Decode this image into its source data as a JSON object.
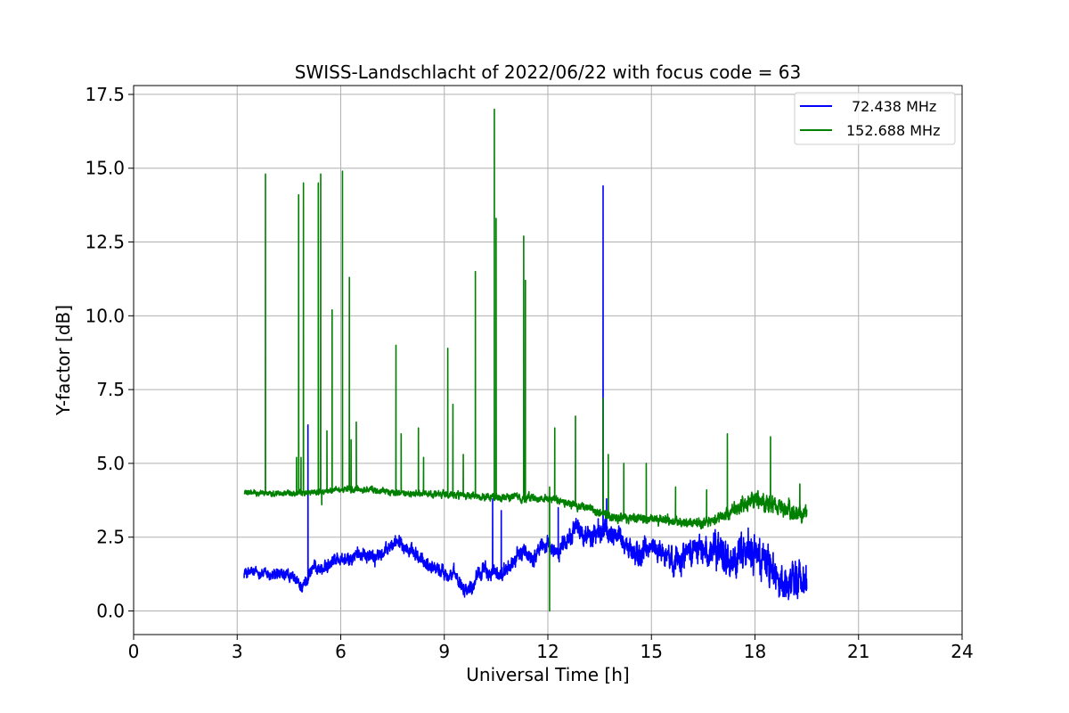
{
  "chart_data": {
    "type": "line",
    "title": "SWISS-Landschlacht of 2022/06/22 with focus code = 63",
    "xlabel": "Universal Time [h]",
    "ylabel": "Y-factor [dB]",
    "xlim": [
      0,
      24
    ],
    "ylim": [
      -0.8,
      17.8
    ],
    "xticks": [
      0,
      3,
      6,
      9,
      12,
      15,
      18,
      21,
      24
    ],
    "xtick_labels": [
      "0",
      "3",
      "6",
      "9",
      "12",
      "15",
      "18",
      "21",
      "24"
    ],
    "yticks": [
      0,
      2.5,
      5,
      7.5,
      10,
      12.5,
      15,
      17.5
    ],
    "ytick_labels": [
      "0.0",
      "2.5",
      "5.0",
      "7.5",
      "10.0",
      "12.5",
      "15.0",
      "17.5"
    ],
    "grid": true,
    "legend_position": "top-right",
    "series": [
      {
        "name": "72.438 MHz",
        "color": "#0000ff",
        "baseline": [
          [
            3.2,
            1.3
          ],
          [
            3.6,
            1.3
          ],
          [
            4.0,
            1.2
          ],
          [
            4.5,
            1.2
          ],
          [
            4.9,
            0.8
          ],
          [
            5.2,
            1.5
          ],
          [
            5.5,
            1.4
          ],
          [
            5.8,
            1.8
          ],
          [
            6.2,
            1.7
          ],
          [
            6.6,
            2.0
          ],
          [
            7.0,
            1.8
          ],
          [
            7.3,
            2.0
          ],
          [
            7.7,
            2.5
          ],
          [
            8.0,
            2.0
          ],
          [
            8.5,
            1.6
          ],
          [
            9.0,
            1.3
          ],
          [
            9.3,
            1.2
          ],
          [
            9.6,
            0.8
          ],
          [
            9.8,
            0.8
          ],
          [
            10.0,
            1.4
          ],
          [
            10.3,
            1.3
          ],
          [
            10.6,
            1.2
          ],
          [
            10.9,
            1.5
          ],
          [
            11.2,
            2.0
          ],
          [
            11.6,
            1.8
          ],
          [
            11.9,
            2.3
          ],
          [
            12.2,
            2.0
          ],
          [
            12.5,
            2.3
          ],
          [
            12.8,
            2.8
          ],
          [
            13.2,
            2.5
          ],
          [
            13.6,
            2.7
          ],
          [
            14.0,
            2.6
          ],
          [
            14.3,
            2.2
          ],
          [
            14.6,
            1.8
          ],
          [
            15.0,
            2.2
          ],
          [
            15.3,
            2.0
          ],
          [
            15.6,
            1.7
          ],
          [
            16.0,
            2.0
          ],
          [
            16.3,
            2.2
          ],
          [
            16.6,
            2.0
          ],
          [
            17.0,
            2.0
          ],
          [
            17.4,
            1.6
          ],
          [
            17.8,
            2.0
          ],
          [
            18.2,
            1.8
          ],
          [
            18.5,
            1.4
          ],
          [
            18.8,
            1.0
          ],
          [
            19.0,
            0.8
          ],
          [
            19.2,
            1.1
          ],
          [
            19.5,
            1.1
          ]
        ],
        "noise": [
          [
            3.2,
            0.15
          ],
          [
            11.0,
            0.2
          ],
          [
            14.0,
            0.3
          ],
          [
            16.0,
            0.35
          ],
          [
            17.0,
            0.45
          ],
          [
            18.0,
            0.5
          ],
          [
            19.5,
            0.45
          ]
        ],
        "spikes": [
          [
            5.05,
            6.3
          ],
          [
            10.4,
            3.8
          ],
          [
            10.65,
            3.4
          ],
          [
            12.3,
            3.5
          ],
          [
            13.6,
            14.4
          ],
          [
            13.7,
            3.8
          ]
        ]
      },
      {
        "name": "152.688 MHz",
        "color": "#008000",
        "baseline": [
          [
            3.2,
            4.0
          ],
          [
            4.0,
            4.0
          ],
          [
            5.0,
            4.0
          ],
          [
            6.0,
            4.1
          ],
          [
            7.0,
            4.1
          ],
          [
            8.0,
            3.95
          ],
          [
            9.0,
            3.95
          ],
          [
            10.0,
            3.85
          ],
          [
            11.0,
            3.85
          ],
          [
            12.0,
            3.8
          ],
          [
            12.5,
            3.7
          ],
          [
            13.0,
            3.55
          ],
          [
            13.5,
            3.3
          ],
          [
            14.0,
            3.15
          ],
          [
            15.0,
            3.15
          ],
          [
            16.0,
            3.0
          ],
          [
            16.6,
            2.95
          ],
          [
            17.0,
            3.2
          ],
          [
            17.5,
            3.5
          ],
          [
            18.0,
            3.7
          ],
          [
            18.5,
            3.6
          ],
          [
            19.0,
            3.35
          ],
          [
            19.5,
            3.3
          ]
        ],
        "noise": [
          [
            3.2,
            0.07
          ],
          [
            12.0,
            0.1
          ],
          [
            17.0,
            0.15
          ],
          [
            18.0,
            0.25
          ],
          [
            19.5,
            0.2
          ]
        ],
        "spikes": [
          [
            3.82,
            14.8
          ],
          [
            4.72,
            5.2
          ],
          [
            4.78,
            14.1
          ],
          [
            4.85,
            5.2
          ],
          [
            4.92,
            14.5
          ],
          [
            5.35,
            14.5
          ],
          [
            5.42,
            14.8
          ],
          [
            5.6,
            6.1
          ],
          [
            5.75,
            10.2
          ],
          [
            6.05,
            14.9
          ],
          [
            6.25,
            11.3
          ],
          [
            6.3,
            5.8
          ],
          [
            6.45,
            6.4
          ],
          [
            7.6,
            9.0
          ],
          [
            7.75,
            6.0
          ],
          [
            8.25,
            6.2
          ],
          [
            8.4,
            5.2
          ],
          [
            9.1,
            8.9
          ],
          [
            9.25,
            7.0
          ],
          [
            9.55,
            5.3
          ],
          [
            9.9,
            11.5
          ],
          [
            10.45,
            17.0
          ],
          [
            10.5,
            13.3
          ],
          [
            11.3,
            12.7
          ],
          [
            11.35,
            11.2
          ],
          [
            12.05,
            4.2
          ],
          [
            12.2,
            6.2
          ],
          [
            12.8,
            6.6
          ],
          [
            13.6,
            7.2
          ],
          [
            13.75,
            5.3
          ],
          [
            14.2,
            5.0
          ],
          [
            14.85,
            5.0
          ],
          [
            15.7,
            4.2
          ],
          [
            16.6,
            4.1
          ],
          [
            17.2,
            6.0
          ],
          [
            18.45,
            5.9
          ],
          [
            19.3,
            4.3
          ]
        ],
        "dips": [
          [
            12.05,
            0.0
          ],
          [
            5.45,
            3.6
          ]
        ]
      }
    ]
  }
}
